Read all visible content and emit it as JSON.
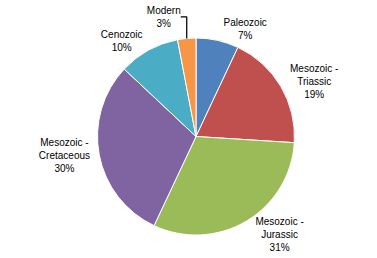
{
  "chart_data": {
    "type": "pie",
    "categories": [
      "Paleozoic",
      "Mesozoic - Triassic",
      "Mesozoic - Jurassic",
      "Mesozoic - Cretaceous",
      "Cenozoic",
      "Modern"
    ],
    "values": [
      7,
      19,
      31,
      30,
      10,
      3
    ],
    "value_labels": [
      "7%",
      "19%",
      "31%",
      "30%",
      "10%",
      "3%"
    ],
    "colors": [
      "#4f81bd",
      "#c0504d",
      "#9bbb59",
      "#8064a2",
      "#4bacc6",
      "#f79646"
    ],
    "data_labels": true
  }
}
